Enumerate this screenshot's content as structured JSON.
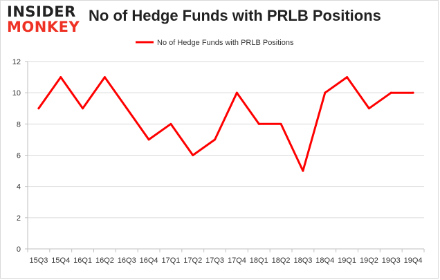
{
  "header": {
    "logo_top": "INSIDER",
    "logo_bottom": "MONKEY",
    "title": "No of Hedge Funds with PRLB Positions"
  },
  "chart_data": {
    "type": "line",
    "title": "No of Hedge Funds with PRLB Positions",
    "xlabel": "",
    "ylabel": "",
    "categories": [
      "15Q3",
      "15Q4",
      "16Q1",
      "16Q2",
      "16Q3",
      "16Q4",
      "17Q1",
      "17Q2",
      "17Q3",
      "17Q4",
      "18Q1",
      "18Q2",
      "18Q3",
      "18Q4",
      "19Q1",
      "19Q2",
      "19Q3",
      "19Q4"
    ],
    "series": [
      {
        "name": "No of Hedge Funds with PRLB Positions",
        "color": "#ff0000",
        "values": [
          9,
          11,
          9,
          11,
          9,
          7,
          8,
          6,
          7,
          10,
          8,
          8,
          5,
          10,
          11,
          9,
          10,
          10
        ]
      }
    ],
    "ylim": [
      0,
      12
    ],
    "yticks": [
      0,
      2,
      4,
      6,
      8,
      10,
      12
    ],
    "grid": true,
    "legend_position": "top"
  }
}
